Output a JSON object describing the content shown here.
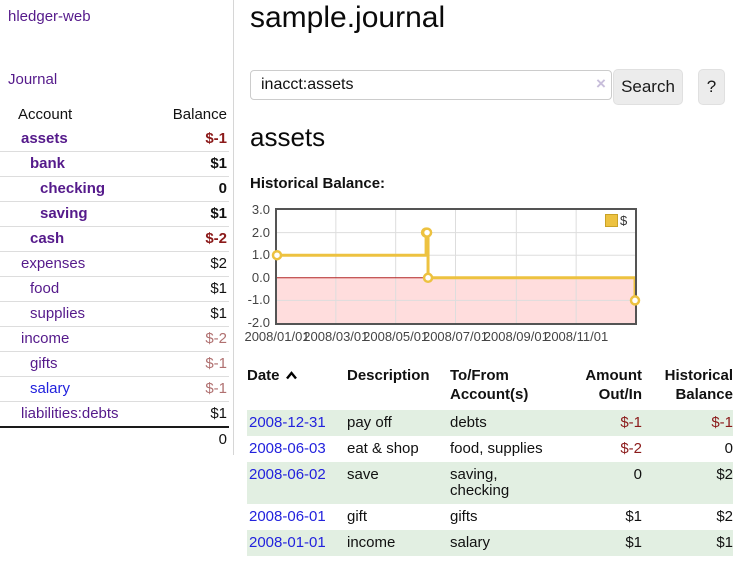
{
  "sidebar": {
    "app_title": "hledger-web",
    "nav": {
      "journal_label": "Journal"
    },
    "accounts_table": {
      "headers": {
        "account": "Account",
        "balance": "Balance"
      },
      "rows": [
        {
          "account": "assets",
          "balance": "$-1",
          "depth": 1,
          "bold": true,
          "link": "purple",
          "balance_style": "neg"
        },
        {
          "account": "bank",
          "balance": "$1",
          "depth": 2,
          "bold": true,
          "link": "purple",
          "balance_style": ""
        },
        {
          "account": "checking",
          "balance": "0",
          "depth": 3,
          "bold": true,
          "link": "purple",
          "balance_style": ""
        },
        {
          "account": "saving",
          "balance": "$1",
          "depth": 3,
          "bold": true,
          "link": "purple",
          "balance_style": ""
        },
        {
          "account": "cash",
          "balance": "$-2",
          "depth": 2,
          "bold": true,
          "link": "purple",
          "balance_style": "neg"
        },
        {
          "account": "expenses",
          "balance": "$2",
          "depth": 1,
          "bold": false,
          "link": "purple",
          "balance_style": ""
        },
        {
          "account": "food",
          "balance": "$1",
          "depth": 2,
          "bold": false,
          "link": "purple",
          "balance_style": ""
        },
        {
          "account": "supplies",
          "balance": "$1",
          "depth": 2,
          "bold": false,
          "link": "purple",
          "balance_style": ""
        },
        {
          "account": "income",
          "balance": "$-2",
          "depth": 1,
          "bold": false,
          "link": "purple",
          "balance_style": "negfade"
        },
        {
          "account": "gifts",
          "balance": "$-1",
          "depth": 2,
          "bold": false,
          "link": "purple",
          "balance_style": "negfade"
        },
        {
          "account": "salary",
          "balance": "$-1",
          "depth": 2,
          "bold": false,
          "link": "blue",
          "balance_style": "negfade"
        },
        {
          "account": "liabilities:debts",
          "balance": "$1",
          "depth": 1,
          "bold": false,
          "link": "purple",
          "balance_style": ""
        }
      ],
      "total": "0"
    }
  },
  "main": {
    "page_title": "sample.journal",
    "search": {
      "value": "inacct:assets",
      "clear_icon": "×",
      "button_label": "Search",
      "help_label": "?"
    },
    "account_heading": "assets",
    "chart_label": "Historical Balance:"
  },
  "chart_data": {
    "type": "line",
    "title": "Historical Balance:",
    "series": [
      {
        "name": "$",
        "step": true,
        "points": [
          {
            "date": "2008-01-01",
            "value": 1
          },
          {
            "date": "2008-06-01",
            "value": 2
          },
          {
            "date": "2008-06-02",
            "value": 2
          },
          {
            "date": "2008-06-03",
            "value": 0
          },
          {
            "date": "2008-12-31",
            "value": -1
          }
        ]
      }
    ],
    "x_range": [
      "2008-01-01",
      "2008-12-31"
    ],
    "y_range": [
      -2,
      3
    ],
    "x_ticks": [
      "2008/01/01",
      "2008/03/01",
      "2008/05/01",
      "2008/07/01",
      "2008/09/01",
      "2008/11/01"
    ],
    "y_ticks": [
      "3.0",
      "2.0",
      "1.0",
      "0.0",
      "-1.0",
      "-2.0"
    ],
    "legend": "$",
    "legend_position": "top-right",
    "grid": true
  },
  "register": {
    "headers": {
      "date": "Date",
      "description": "Description",
      "account": "To/From\nAccount(s)",
      "amount": "Amount\nOut/In",
      "balance": "Historical\nBalance"
    },
    "sort": "ascending",
    "rows": [
      {
        "date": "2008-12-31",
        "description": "pay off",
        "accounts": "debts",
        "amount": "$-1",
        "amount_negative": true,
        "balance": "$-1",
        "balance_negative": true,
        "shaded": true
      },
      {
        "date": "2008-06-03",
        "description": "eat & shop",
        "accounts": "food, supplies",
        "amount": "$-2",
        "amount_negative": true,
        "balance": "0",
        "balance_negative": false,
        "shaded": false
      },
      {
        "date": "2008-06-02",
        "description": "save",
        "accounts": "saving,\nchecking",
        "amount": "0",
        "amount_negative": false,
        "balance": "$2",
        "balance_negative": false,
        "shaded": true
      },
      {
        "date": "2008-06-01",
        "description": "gift",
        "accounts": "gifts",
        "amount": "$1",
        "amount_negative": false,
        "balance": "$2",
        "balance_negative": false,
        "shaded": false
      },
      {
        "date": "2008-01-01",
        "description": "income",
        "accounts": "salary",
        "amount": "$1",
        "amount_negative": false,
        "balance": "$1",
        "balance_negative": false,
        "shaded": true
      }
    ]
  },
  "colors": {
    "link_purple": "#551a8b",
    "link_blue": "#2222dd",
    "negative": "#8b1a1a",
    "negative_faded": "#b07070",
    "row_shade_green": "#e2efe2",
    "chart_line": "#edc240",
    "chart_negative_region": "#ffdddd",
    "chart_zero_line": "#b22222",
    "chart_border": "#545454",
    "chart_grid": "#dddddd"
  }
}
